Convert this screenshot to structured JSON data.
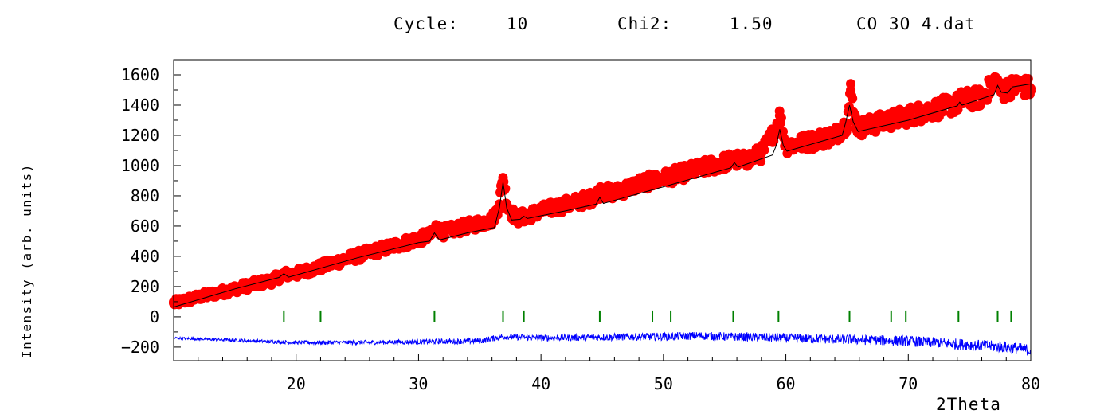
{
  "header": {
    "cycle_label": "Cycle:",
    "cycle_value": "10",
    "chi2_label": "Chi2:",
    "chi2_value": "1.50",
    "filename": "CO_3O_4.dat"
  },
  "chart_data": {
    "type": "scatter",
    "xlabel": "2Theta",
    "ylabel": "Intensity (arb. units)",
    "xlim": [
      10,
      80
    ],
    "ylim": [
      -290,
      1700
    ],
    "xticks": [
      20,
      30,
      40,
      50,
      60,
      70,
      80
    ],
    "yticks": [
      -200,
      0,
      200,
      400,
      600,
      800,
      1000,
      1200,
      1400,
      1600
    ],
    "grid": false,
    "colors": {
      "observed": "#ff0000",
      "calculated": "#000000",
      "difference": "#0000ff",
      "bragg": "#008000"
    },
    "series": [
      {
        "kind": "observed",
        "x": [
          10,
          12,
          14,
          16,
          18,
          19,
          20,
          22,
          24,
          26,
          28,
          30,
          31,
          31.4,
          32,
          34,
          36,
          36.5,
          36.9,
          37.3,
          38,
          38.7,
          40,
          42,
          44,
          44.9,
          46,
          48,
          50,
          52,
          54,
          55.8,
          56.5,
          58,
          59.1,
          59.5,
          60,
          62,
          64,
          65.0,
          65.3,
          65.7,
          66,
          68,
          70,
          72,
          74,
          74.2,
          76,
          77.2,
          77.6,
          78,
          79,
          80
        ],
        "y": [
          90,
          130,
          165,
          205,
          240,
          280,
          285,
          330,
          380,
          425,
          470,
          515,
          540,
          595,
          560,
          600,
          640,
          720,
          920,
          720,
          650,
          665,
          700,
          740,
          780,
          830,
          820,
          880,
          915,
          960,
          1000,
          1040,
          1030,
          1080,
          1230,
          1330,
          1130,
          1160,
          1200,
          1280,
          1500,
          1280,
          1250,
          1290,
          1330,
          1370,
          1410,
          1430,
          1450,
          1570,
          1480,
          1510,
          1530,
          1510
        ]
      },
      {
        "kind": "calculated",
        "x": [
          10,
          15,
          18.6,
          19.0,
          19.4,
          25,
          30,
          30.9,
          31.3,
          31.7,
          34,
          36.2,
          36.6,
          36.9,
          37.2,
          37.6,
          38.3,
          38.6,
          38.9,
          42,
          44.5,
          44.8,
          45.1,
          50,
          55.5,
          55.8,
          56.1,
          58.9,
          59.2,
          59.5,
          59.8,
          60.1,
          64.6,
          64.9,
          65.2,
          65.5,
          65.9,
          70,
          74.0,
          74.2,
          74.4,
          77.0,
          77.3,
          77.6,
          78.1,
          78.5,
          80
        ],
        "y": [
          65,
          185,
          260,
          285,
          262,
          390,
          490,
          500,
          555,
          508,
          555,
          590,
          720,
          890,
          720,
          640,
          645,
          665,
          650,
          700,
          745,
          790,
          750,
          860,
          985,
          1020,
          990,
          1070,
          1130,
          1240,
          1130,
          1095,
          1200,
          1290,
          1400,
          1290,
          1225,
          1300,
          1395,
          1420,
          1400,
          1470,
          1530,
          1485,
          1480,
          1520,
          1540
        ]
      },
      {
        "kind": "difference",
        "x": [
          10,
          15,
          20,
          25,
          30,
          35,
          36.9,
          40,
          45,
          50,
          53,
          55,
          60,
          65,
          70,
          75,
          78,
          80
        ],
        "y": [
          -140,
          -155,
          -170,
          -170,
          -165,
          -160,
          -130,
          -140,
          -135,
          -130,
          -125,
          -130,
          -140,
          -150,
          -160,
          -185,
          -200,
          -220
        ]
      },
      {
        "kind": "bragg",
        "x": [
          19.0,
          22.0,
          31.3,
          36.9,
          38.6,
          44.8,
          49.1,
          50.6,
          55.7,
          59.4,
          65.2,
          68.6,
          69.8,
          74.1,
          77.3,
          78.4
        ],
        "y": [
          0,
          0,
          0,
          0,
          0,
          0,
          0,
          0,
          0,
          0,
          0,
          0,
          0,
          0,
          0,
          0
        ]
      }
    ]
  }
}
